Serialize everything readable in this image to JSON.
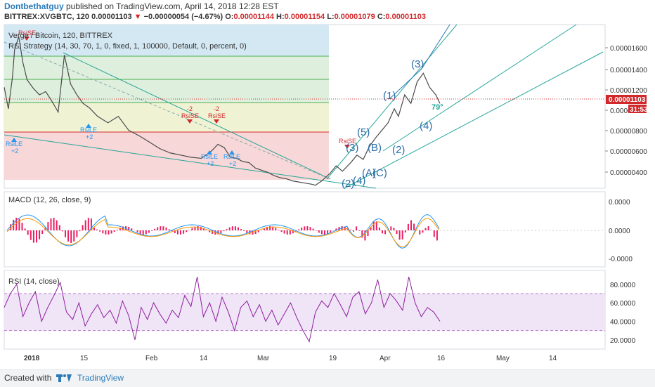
{
  "header": {
    "author": "Dontbethatguy",
    "published": "published on TradingView.com, April 14, 2018 12:28 EST"
  },
  "ohlc": {
    "symbol": "BITTREX:XVGBTC, 120",
    "last": "0.00001103",
    "change_arrow": "▼",
    "change": "−0.00000054 (−4.67%)",
    "o_label": "O:",
    "o": "0.00001144",
    "h_label": "H:",
    "h": "0.00001154",
    "l_label": "L:",
    "l": "0.00001079",
    "c_label": "C:",
    "c": "0.00001103"
  },
  "footer": {
    "created": "Created with",
    "brand": "TradingView"
  },
  "colors": {
    "up": "#26a69a",
    "down": "#d0282b",
    "accent": "#2a7ab8",
    "rsi": "#8e1f9e",
    "macd_hist": "#e91e63"
  },
  "chart_data": [
    {
      "type": "line",
      "title": "Verge / Bitcoin, 120, BITTREX",
      "subtitle": "RSI Strategy (14, 30, 70, 1, 0, fixed, 1, 100000, Default, 0, percent, 0)",
      "x_ticks": [
        "2018",
        "15",
        "Feb",
        "14",
        "Mar",
        "19",
        "Apr",
        "16",
        "May",
        "14"
      ],
      "y_ticks": [
        "0.00001600",
        "0.00001400",
        "0.00001200",
        "0.00001000",
        "0.00000800",
        "0.00000600",
        "0.00000400"
      ],
      "ylim": [
        2.6e-06,
        1.78e-05
      ],
      "price_label": "0.00001103",
      "countdown_label": "31:53",
      "angle_label": "79°",
      "series": [
        {
          "x": [
            0,
            2,
            4,
            5,
            7,
            9,
            11,
            14,
            17,
            20,
            23,
            26,
            29,
            32,
            35,
            38,
            41,
            45,
            50,
            55,
            60,
            65,
            70,
            75,
            80,
            85,
            90,
            95,
            98,
            100,
            103,
            106,
            109,
            112,
            115,
            118,
            121,
            124,
            127,
            130,
            133,
            136,
            139,
            142,
            145,
            148,
            150,
            153,
            157,
            160,
            163,
            167,
            170,
            173,
            176,
            179,
            182,
            185,
            188,
            190,
            193,
            196,
            199,
            202,
            205,
            208,
            210
          ],
          "y": [
            1.25e-05,
            1.05e-05,
            1.35e-05,
            1.6e-05,
            1.72e-05,
            1.48e-05,
            1.32e-05,
            1.24e-05,
            1.18e-05,
            1.21e-05,
            1.12e-05,
            1.02e-05,
            1.55e-05,
            1.28e-05,
            1.18e-05,
            1.1e-05,
            1.06e-05,
            9.8e-06,
            9.2e-06,
            9.8e-06,
            8.5e-06,
            8e-06,
            7.4e-06,
            6.8e-06,
            6.4e-06,
            6.2e-06,
            6e-06,
            5.9e-06,
            6.3e-06,
            6.6e-06,
            7.2e-06,
            6.9e-06,
            6e-06,
            5.9e-06,
            5.6e-06,
            5.5e-06,
            5e-06,
            4.8e-06,
            4.6e-06,
            4.3e-06,
            4.1e-06,
            4e-06,
            3.8e-06,
            3.7e-06,
            3.6e-06,
            3.5e-06,
            3.4e-06,
            3.8e-06,
            4.5e-06,
            5.2e-06,
            4.7e-06,
            5.5e-06,
            6.2e-06,
            5.8e-06,
            7e-06,
            7.8e-06,
            8.5e-06,
            9.2e-06,
            1.05e-05,
            9.8e-06,
            1.18e-05,
            1.1e-05,
            1.3e-05,
            1.38e-05,
            1.25e-05,
            1.18e-05,
            1.1e-05
          ]
        }
      ],
      "markers": [
        {
          "label": "RsiLE",
          "sub": "+2",
          "kind": "long"
        },
        {
          "label": "RsiLE",
          "sub": "+2",
          "kind": "long"
        },
        {
          "label": "RsiSE",
          "sub": "-2",
          "kind": "short"
        },
        {
          "label": "RsiSE",
          "sub": "-2",
          "kind": "short"
        },
        {
          "label": "RsiLE",
          "sub": "+2",
          "kind": "long"
        },
        {
          "label": "RsiLE",
          "sub": "+2",
          "kind": "long"
        },
        {
          "label": "RsiSE",
          "sub": "",
          "kind": "short"
        },
        {
          "label": "RsiSE",
          "sub": "",
          "kind": "short"
        }
      ],
      "waves": [
        "(2)",
        "(4)",
        "(3)",
        "(5)",
        "(B)",
        "(A)",
        "(C)",
        "(1)",
        "(2)",
        "(3)",
        "(4)"
      ]
    },
    {
      "type": "line",
      "title": "MACD (12, 26, close, 9)",
      "y_ticks": [
        "0.0000",
        "0.0000",
        "-0.0000"
      ],
      "series": [
        {
          "name": "MACD",
          "color": "#2196f3"
        },
        {
          "name": "Signal",
          "color": "#ff9800"
        },
        {
          "name": "Histogram",
          "color": "#e91e63"
        }
      ]
    },
    {
      "type": "line",
      "title": "RSI (14, close)",
      "ylim": [
        10,
        95
      ],
      "y_ticks": [
        "80.0000",
        "60.0000",
        "40.0000",
        "20.0000"
      ],
      "bands": [
        30,
        70
      ],
      "series": [
        {
          "x": [
            0,
            3,
            6,
            9,
            12,
            15,
            18,
            21,
            24,
            27,
            30,
            33,
            36,
            39,
            42,
            45,
            48,
            51,
            54,
            57,
            60,
            63,
            66,
            69,
            72,
            75,
            78,
            81,
            84,
            87,
            90,
            93,
            96,
            99,
            102,
            105,
            108,
            111,
            114,
            117,
            120,
            123,
            126,
            129,
            132,
            135,
            138,
            141,
            144,
            147,
            150,
            153,
            156,
            159,
            162,
            165,
            168,
            171,
            174,
            177,
            180,
            183,
            186,
            189,
            192,
            195,
            198,
            201,
            204,
            207,
            210
          ],
          "y": [
            55,
            70,
            80,
            45,
            60,
            72,
            40,
            55,
            68,
            82,
            50,
            42,
            60,
            35,
            48,
            58,
            44,
            52,
            38,
            62,
            46,
            20,
            55,
            42,
            60,
            48,
            38,
            52,
            44,
            68,
            56,
            88,
            45,
            60,
            40,
            66,
            50,
            30,
            55,
            62,
            45,
            58,
            40,
            52,
            36,
            48,
            60,
            44,
            30,
            18,
            50,
            62,
            55,
            70,
            58,
            45,
            66,
            72,
            48,
            60,
            85,
            55,
            70,
            62,
            52,
            88,
            60,
            45,
            55,
            50,
            40
          ]
        }
      ]
    }
  ]
}
